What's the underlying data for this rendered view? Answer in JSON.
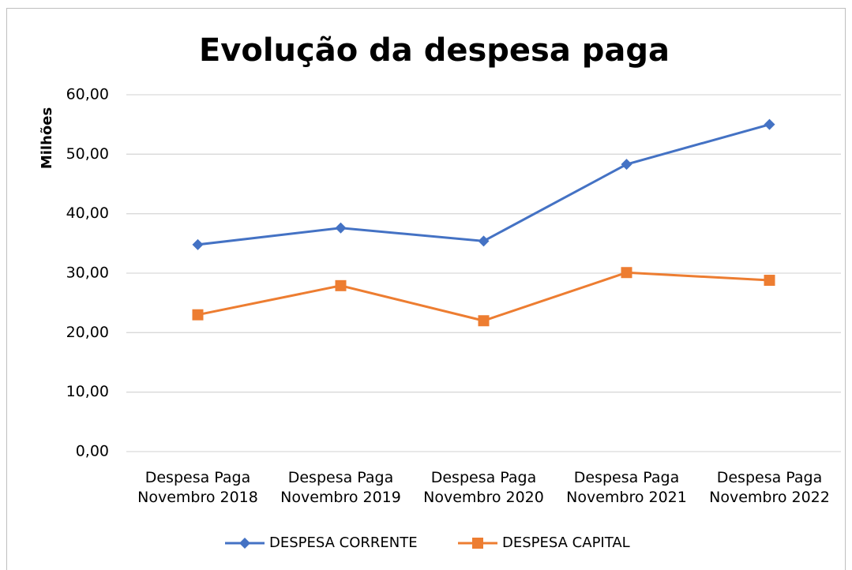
{
  "chart_data": {
    "type": "line",
    "title": "Evolução da despesa paga",
    "y_label": "Milhões",
    "categories": [
      "Despesa Paga Novembro 2018",
      "Despesa Paga Novembro 2019",
      "Despesa Paga Novembro 2020",
      "Despesa Paga Novembro 2021",
      "Despesa Paga Novembro 2022"
    ],
    "series": [
      {
        "name": "DESPESA CORRENTE",
        "color": "#4472c4",
        "marker": "diamond",
        "values": [
          34.8,
          37.6,
          35.4,
          48.3,
          55.0
        ]
      },
      {
        "name": "DESPESA CAPITAL",
        "color": "#ed7d31",
        "marker": "square",
        "values": [
          23.0,
          27.9,
          22.0,
          30.1,
          28.8
        ]
      }
    ],
    "ylim": [
      0,
      60
    ],
    "yticks": [
      {
        "value": 0,
        "label": "0,00"
      },
      {
        "value": 10,
        "label": "10,00"
      },
      {
        "value": 20,
        "label": "20,00"
      },
      {
        "value": 30,
        "label": "30,00"
      },
      {
        "value": 40,
        "label": "40,00"
      },
      {
        "value": 50,
        "label": "50,00"
      },
      {
        "value": 60,
        "label": "60,00"
      }
    ],
    "grid": true,
    "legend": "bottom"
  }
}
